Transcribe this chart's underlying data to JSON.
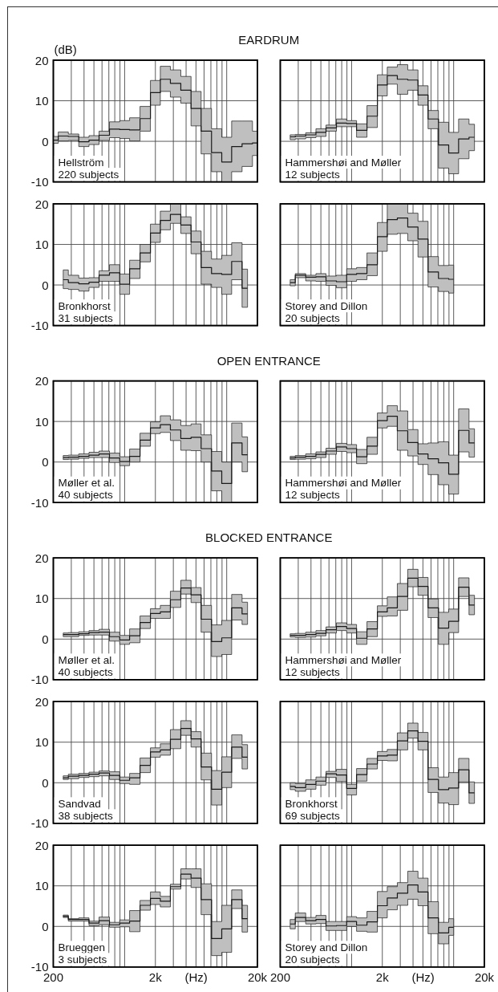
{
  "chart_data": [
    {
      "type": "step",
      "title": "EARDRUM",
      "ylabel": "(dB)",
      "annotations": [
        "Hellström",
        "220 subjects"
      ],
      "x": [
        200,
        250,
        315,
        400,
        500,
        630,
        800,
        1000,
        1250,
        1600,
        2000,
        2500,
        3150,
        4000,
        5000,
        6300,
        8000,
        10000,
        12500,
        16000,
        20000
      ],
      "series": [
        {
          "color": "#1a1a1a",
          "values": [
            0.3,
            1.3,
            1.2,
            -0.1,
            0.3,
            1.5,
            3.0,
            2.9,
            2.8,
            5.6,
            12.0,
            15.3,
            14.3,
            12.6,
            8.1,
            2.5,
            -2.8,
            -5.1,
            -1.3,
            -0.6,
            -0.4
          ],
          "upper": [
            1.2,
            2.3,
            1.8,
            1.0,
            1.4,
            2.5,
            4.8,
            5.1,
            5.8,
            8.6,
            15.0,
            18.5,
            17.6,
            16.0,
            12.3,
            8.1,
            3.1,
            1.0,
            5.0,
            5.0,
            2.5
          ],
          "lower": [
            -0.5,
            0.1,
            0.2,
            -1.3,
            -0.8,
            0.2,
            0.9,
            0.7,
            0.1,
            2.5,
            8.9,
            12.3,
            10.9,
            9.4,
            3.8,
            -3.1,
            -7.5,
            -10,
            -7.5,
            -6.2,
            -3.5
          ]
        }
      ],
      "xlim": [
        200,
        20000
      ],
      "ylim": [
        -10,
        20
      ],
      "log": "x",
      "grid": true,
      "tick_labels": "y",
      "xticks": [
        {
          "value": 200,
          "label": null
        },
        {
          "value": 300,
          "label": null
        },
        {
          "value": 400,
          "label": null
        },
        {
          "value": 500,
          "label": null
        },
        {
          "value": 600,
          "label": null
        },
        {
          "value": 700,
          "label": null
        },
        {
          "value": 800,
          "label": null
        },
        {
          "value": 900,
          "label": null
        },
        {
          "value": 1000,
          "label": null
        },
        {
          "value": 2000,
          "label": null
        },
        {
          "value": 3000,
          "label": null
        },
        {
          "value": 4000,
          "label": null
        },
        {
          "value": 5000,
          "label": null
        },
        {
          "value": 6000,
          "label": null
        },
        {
          "value": 7000,
          "label": null
        },
        {
          "value": 8000,
          "label": null
        },
        {
          "value": 9000,
          "label": null
        },
        {
          "value": 10000,
          "label": null
        },
        {
          "value": 20000,
          "label": null
        }
      ],
      "yticks": [
        -10,
        0,
        10,
        20
      ]
    },
    {
      "type": "step",
      "annotations": [
        "Hammershøi and Møller",
        "12 subjects"
      ],
      "x": [
        250,
        315,
        400,
        500,
        630,
        800,
        1000,
        1250,
        1600,
        2000,
        2500,
        3150,
        4000,
        5000,
        6300,
        8000,
        10000,
        12500,
        16000
      ],
      "series": [
        {
          "color": "#1a1a1a",
          "values": [
            1.1,
            1.3,
            1.6,
            2.2,
            3.3,
            4.5,
            4.4,
            2.7,
            6.2,
            13.9,
            16.2,
            15.3,
            15.1,
            11.4,
            5.5,
            -0.9,
            -2.9,
            0.6,
            1.0
          ],
          "upper": [
            1.6,
            1.7,
            2.1,
            3.1,
            4.0,
            5.5,
            5.1,
            4.3,
            8.8,
            16.4,
            18.3,
            18.9,
            17.6,
            13.7,
            7.6,
            4.7,
            2.2,
            5.5,
            4.2
          ],
          "lower": [
            0.4,
            0.6,
            0.9,
            1.2,
            2.5,
            3.6,
            3.6,
            1.0,
            3.4,
            11.2,
            14.1,
            11.6,
            12.6,
            8.9,
            3.1,
            -6.6,
            -8.0,
            -4.3,
            -2.3
          ]
        }
      ],
      "xlim": [
        200,
        20000
      ],
      "ylim": [
        -10,
        20
      ],
      "log": "x",
      "grid": true,
      "tick_labels": false,
      "xticks": [
        {
          "value": 200,
          "label": null
        },
        {
          "value": 300,
          "label": null
        },
        {
          "value": 400,
          "label": null
        },
        {
          "value": 500,
          "label": null
        },
        {
          "value": 600,
          "label": null
        },
        {
          "value": 700,
          "label": null
        },
        {
          "value": 800,
          "label": null
        },
        {
          "value": 900,
          "label": null
        },
        {
          "value": 1000,
          "label": null
        },
        {
          "value": 2000,
          "label": null
        },
        {
          "value": 3000,
          "label": null
        },
        {
          "value": 4000,
          "label": null
        },
        {
          "value": 5000,
          "label": null
        },
        {
          "value": 6000,
          "label": null
        },
        {
          "value": 7000,
          "label": null
        },
        {
          "value": 8000,
          "label": null
        },
        {
          "value": 9000,
          "label": null
        },
        {
          "value": 10000,
          "label": null
        },
        {
          "value": 20000,
          "label": null
        }
      ],
      "yticks": [
        -10,
        0,
        10,
        20
      ]
    },
    {
      "type": "step",
      "annotations": [
        "Bronkhorst",
        "31 subjects"
      ],
      "x": [
        250,
        315,
        400,
        500,
        630,
        800,
        1000,
        1250,
        1600,
        2000,
        2500,
        3150,
        4000,
        5000,
        6300,
        8000,
        10000,
        12500,
        16000
      ],
      "series": [
        {
          "color": "#1a1a1a",
          "values": [
            1.3,
            0.6,
            0.3,
            0.7,
            2.4,
            3.0,
            0.2,
            4.0,
            7.9,
            12.8,
            15.9,
            17.4,
            14.8,
            10.6,
            4.3,
            2.8,
            2.6,
            5.8,
            -0.8
          ],
          "upper": [
            3.7,
            2.4,
            1.7,
            1.8,
            3.5,
            5.0,
            2.7,
            6.1,
            10.0,
            15.0,
            18.2,
            20,
            16.8,
            13.3,
            8.3,
            6.4,
            7.3,
            10.4,
            3.9
          ],
          "lower": [
            -0.9,
            -1.1,
            -1.5,
            -0.6,
            0.9,
            0.9,
            -2.3,
            1.6,
            5.7,
            10.5,
            13.6,
            15.2,
            12.7,
            7.7,
            0.2,
            -0.6,
            -2.3,
            1.3,
            -5.5
          ]
        }
      ],
      "xlim": [
        200,
        20000
      ],
      "ylim": [
        -10,
        20
      ],
      "log": "x",
      "grid": true,
      "tick_labels": "y",
      "xticks": [
        {
          "value": 200,
          "label": null
        },
        {
          "value": 300,
          "label": null
        },
        {
          "value": 400,
          "label": null
        },
        {
          "value": 500,
          "label": null
        },
        {
          "value": 600,
          "label": null
        },
        {
          "value": 700,
          "label": null
        },
        {
          "value": 800,
          "label": null
        },
        {
          "value": 900,
          "label": null
        },
        {
          "value": 1000,
          "label": null
        },
        {
          "value": 2000,
          "label": null
        },
        {
          "value": 3000,
          "label": null
        },
        {
          "value": 4000,
          "label": null
        },
        {
          "value": 5000,
          "label": null
        },
        {
          "value": 6000,
          "label": null
        },
        {
          "value": 7000,
          "label": null
        },
        {
          "value": 8000,
          "label": null
        },
        {
          "value": 9000,
          "label": null
        },
        {
          "value": 10000,
          "label": null
        },
        {
          "value": 20000,
          "label": null
        }
      ],
      "yticks": [
        -10,
        0,
        10,
        20
      ]
    },
    {
      "type": "step",
      "annotations": [
        "Storey and Dillon",
        "20 subjects"
      ],
      "x": [
        250,
        315,
        400,
        500,
        630,
        800,
        1000,
        1250,
        1600,
        2000,
        2500,
        3150,
        4000,
        5000,
        6300,
        8000,
        10000
      ],
      "series": [
        {
          "color": "#1a1a1a",
          "values": [
            0.6,
            2.4,
            1.9,
            2.0,
            1.0,
            0.8,
            2.6,
            2.8,
            5.0,
            11.9,
            16.1,
            16.5,
            14.3,
            11.3,
            3.2,
            1.6,
            1.4
          ],
          "upper": [
            1.3,
            2.8,
            2.4,
            2.8,
            2.2,
            2.4,
            4.0,
            4.3,
            7.9,
            15.4,
            20,
            20,
            17.7,
            15.7,
            7.0,
            4.8,
            4.9
          ],
          "lower": [
            -0.2,
            1.8,
            1.0,
            0.9,
            -0.1,
            -0.7,
            0.9,
            1.3,
            2.3,
            8.3,
            12.5,
            12.7,
            10.9,
            6.9,
            -0.5,
            -1.6,
            -2.0
          ]
        }
      ],
      "xlim": [
        200,
        20000
      ],
      "ylim": [
        -10,
        20
      ],
      "log": "x",
      "grid": true,
      "tick_labels": false,
      "xticks": [
        {
          "value": 200,
          "label": null
        },
        {
          "value": 300,
          "label": null
        },
        {
          "value": 400,
          "label": null
        },
        {
          "value": 500,
          "label": null
        },
        {
          "value": 600,
          "label": null
        },
        {
          "value": 700,
          "label": null
        },
        {
          "value": 800,
          "label": null
        },
        {
          "value": 900,
          "label": null
        },
        {
          "value": 1000,
          "label": null
        },
        {
          "value": 2000,
          "label": null
        },
        {
          "value": 3000,
          "label": null
        },
        {
          "value": 4000,
          "label": null
        },
        {
          "value": 5000,
          "label": null
        },
        {
          "value": 6000,
          "label": null
        },
        {
          "value": 7000,
          "label": null
        },
        {
          "value": 8000,
          "label": null
        },
        {
          "value": 9000,
          "label": null
        },
        {
          "value": 10000,
          "label": null
        },
        {
          "value": 20000,
          "label": null
        }
      ],
      "yticks": [
        -10,
        0,
        10,
        20
      ]
    },
    {
      "type": "step",
      "title": "OPEN ENTRANCE",
      "annotations": [
        "Møller et al.",
        "40 subjects"
      ],
      "x": [
        250,
        315,
        400,
        500,
        630,
        800,
        1000,
        1250,
        1600,
        2000,
        2500,
        3150,
        4000,
        5000,
        6300,
        8000,
        10000,
        12500,
        16000
      ],
      "series": [
        {
          "color": "#1a1a1a",
          "values": [
            1.1,
            1.2,
            1.4,
            1.7,
            2.0,
            1.0,
            0.1,
            1.4,
            5.4,
            8.4,
            9.2,
            7.9,
            5.8,
            6.1,
            3.3,
            -2.2,
            -5.3,
            4.7,
            1.8
          ],
          "upper": [
            1.6,
            1.7,
            2.0,
            2.4,
            2.7,
            2.2,
            1.3,
            3.2,
            7.1,
            9.9,
            11.4,
            10.4,
            9.0,
            9.4,
            6.7,
            2.6,
            0.0,
            9.6,
            6.2
          ],
          "lower": [
            0.6,
            0.7,
            0.9,
            1.1,
            1.1,
            -0.1,
            -0.9,
            0.0,
            3.9,
            7.0,
            7.3,
            5.3,
            2.9,
            2.8,
            0.0,
            -7.1,
            -10,
            0.0,
            -2.4
          ]
        }
      ],
      "xlim": [
        200,
        20000
      ],
      "ylim": [
        -10,
        20
      ],
      "log": "x",
      "grid": true,
      "tick_labels": "y",
      "xticks": [
        {
          "value": 200,
          "label": null
        },
        {
          "value": 300,
          "label": null
        },
        {
          "value": 400,
          "label": null
        },
        {
          "value": 500,
          "label": null
        },
        {
          "value": 600,
          "label": null
        },
        {
          "value": 700,
          "label": null
        },
        {
          "value": 800,
          "label": null
        },
        {
          "value": 900,
          "label": null
        },
        {
          "value": 1000,
          "label": null
        },
        {
          "value": 2000,
          "label": null
        },
        {
          "value": 3000,
          "label": null
        },
        {
          "value": 4000,
          "label": null
        },
        {
          "value": 5000,
          "label": null
        },
        {
          "value": 6000,
          "label": null
        },
        {
          "value": 7000,
          "label": null
        },
        {
          "value": 8000,
          "label": null
        },
        {
          "value": 9000,
          "label": null
        },
        {
          "value": 10000,
          "label": null
        },
        {
          "value": 20000,
          "label": null
        }
      ],
      "yticks": [
        -10,
        0,
        10,
        20
      ]
    },
    {
      "type": "step",
      "annotations": [
        "Hammershøi and Møller",
        "12 subjects"
      ],
      "x": [
        250,
        315,
        400,
        500,
        630,
        800,
        1000,
        1250,
        1600,
        2000,
        2500,
        3150,
        4000,
        5000,
        6300,
        8000,
        10000,
        12500,
        16000
      ],
      "series": [
        {
          "color": "#1a1a1a",
          "values": [
            1.0,
            1.2,
            1.4,
            1.9,
            2.7,
            3.7,
            3.3,
            1.3,
            3.9,
            10.2,
            11.3,
            7.7,
            4.8,
            2.0,
            0.8,
            -0.2,
            -3.0,
            7.8,
            4.7
          ],
          "upper": [
            1.4,
            1.6,
            2.0,
            2.5,
            3.4,
            4.6,
            4.3,
            3.1,
            6.1,
            12.1,
            13.9,
            12.6,
            8.0,
            4.5,
            4.7,
            5.0,
            1.7,
            13.1,
            8.2
          ],
          "lower": [
            0.6,
            0.7,
            0.8,
            1.1,
            1.9,
            2.6,
            2.3,
            -0.4,
            1.9,
            8.4,
            8.8,
            2.9,
            1.5,
            -0.6,
            -3.1,
            -5.6,
            -7.9,
            2.5,
            1.2
          ]
        }
      ],
      "xlim": [
        200,
        20000
      ],
      "ylim": [
        -10,
        20
      ],
      "log": "x",
      "grid": true,
      "tick_labels": false,
      "xticks": [
        {
          "value": 200,
          "label": null
        },
        {
          "value": 300,
          "label": null
        },
        {
          "value": 400,
          "label": null
        },
        {
          "value": 500,
          "label": null
        },
        {
          "value": 600,
          "label": null
        },
        {
          "value": 700,
          "label": null
        },
        {
          "value": 800,
          "label": null
        },
        {
          "value": 900,
          "label": null
        },
        {
          "value": 1000,
          "label": null
        },
        {
          "value": 2000,
          "label": null
        },
        {
          "value": 3000,
          "label": null
        },
        {
          "value": 4000,
          "label": null
        },
        {
          "value": 5000,
          "label": null
        },
        {
          "value": 6000,
          "label": null
        },
        {
          "value": 7000,
          "label": null
        },
        {
          "value": 8000,
          "label": null
        },
        {
          "value": 9000,
          "label": null
        },
        {
          "value": 10000,
          "label": null
        },
        {
          "value": 20000,
          "label": null
        }
      ],
      "yticks": [
        -10,
        0,
        10,
        20
      ]
    },
    {
      "type": "step",
      "title": "BLOCKED ENTRANCE",
      "annotations": [
        "Møller et al.",
        "40 subjects"
      ],
      "x": [
        250,
        315,
        400,
        500,
        630,
        800,
        1000,
        1250,
        1600,
        2000,
        2500,
        3150,
        4000,
        5000,
        6300,
        8000,
        10000,
        12500,
        16000
      ],
      "series": [
        {
          "color": "#1a1a1a",
          "values": [
            1.1,
            1.1,
            1.3,
            1.6,
            1.7,
            0.6,
            -0.2,
            0.8,
            4.1,
            6.3,
            6.7,
            9.7,
            12.6,
            10.9,
            4.9,
            -0.6,
            0.3,
            7.7,
            6.2
          ],
          "upper": [
            1.5,
            1.6,
            1.8,
            2.1,
            2.4,
            1.7,
            0.9,
            2.5,
            5.7,
            7.5,
            8.3,
            11.8,
            14.5,
            12.7,
            8.3,
            3.5,
            4.6,
            11.0,
            9.1
          ],
          "lower": [
            0.6,
            0.6,
            0.9,
            1.0,
            1.0,
            -0.5,
            -1.3,
            -0.9,
            2.6,
            5.1,
            5.1,
            7.8,
            11.1,
            9.0,
            1.7,
            -4.3,
            -3.8,
            4.7,
            3.6
          ]
        }
      ],
      "xlim": [
        200,
        20000
      ],
      "ylim": [
        -10,
        20
      ],
      "log": "x",
      "grid": true,
      "tick_labels": "y",
      "xticks": [
        {
          "value": 200,
          "label": null
        },
        {
          "value": 300,
          "label": null
        },
        {
          "value": 400,
          "label": null
        },
        {
          "value": 500,
          "label": null
        },
        {
          "value": 600,
          "label": null
        },
        {
          "value": 700,
          "label": null
        },
        {
          "value": 800,
          "label": null
        },
        {
          "value": 900,
          "label": null
        },
        {
          "value": 1000,
          "label": null
        },
        {
          "value": 2000,
          "label": null
        },
        {
          "value": 3000,
          "label": null
        },
        {
          "value": 4000,
          "label": null
        },
        {
          "value": 5000,
          "label": null
        },
        {
          "value": 6000,
          "label": null
        },
        {
          "value": 7000,
          "label": null
        },
        {
          "value": 8000,
          "label": null
        },
        {
          "value": 9000,
          "label": null
        },
        {
          "value": 10000,
          "label": null
        },
        {
          "value": 20000,
          "label": null
        }
      ],
      "yticks": [
        -10,
        0,
        10,
        20
      ]
    },
    {
      "type": "step",
      "annotations": [
        "Hammershøi and Møller",
        "12 subjects"
      ],
      "x": [
        250,
        315,
        400,
        500,
        630,
        800,
        1000,
        1250,
        1600,
        2000,
        2500,
        3150,
        4000,
        5000,
        6300,
        8000,
        10000,
        12500,
        16000
      ],
      "series": [
        {
          "color": "#1a1a1a",
          "values": [
            0.9,
            0.9,
            1.1,
            1.4,
            2.3,
            3.1,
            2.6,
            0.2,
            2.5,
            6.7,
            7.7,
            10.5,
            15.0,
            13.0,
            7.7,
            2.7,
            4.4,
            12.8,
            8.4
          ],
          "upper": [
            1.3,
            1.4,
            1.7,
            2.1,
            3.0,
            4.0,
            3.6,
            1.8,
            4.3,
            8.2,
            10.4,
            13.7,
            17.2,
            15.2,
            9.9,
            6.6,
            7.4,
            15.1,
            10.8
          ],
          "lower": [
            0.5,
            0.4,
            0.5,
            0.8,
            1.5,
            2.1,
            1.5,
            -1.3,
            0.6,
            5.6,
            5.7,
            7.1,
            12.9,
            10.8,
            5.3,
            -1.3,
            1.6,
            10.5,
            6.0
          ]
        }
      ],
      "xlim": [
        200,
        20000
      ],
      "ylim": [
        -10,
        20
      ],
      "log": "x",
      "grid": true,
      "tick_labels": false,
      "xticks": [
        {
          "value": 200,
          "label": null
        },
        {
          "value": 300,
          "label": null
        },
        {
          "value": 400,
          "label": null
        },
        {
          "value": 500,
          "label": null
        },
        {
          "value": 600,
          "label": null
        },
        {
          "value": 700,
          "label": null
        },
        {
          "value": 800,
          "label": null
        },
        {
          "value": 900,
          "label": null
        },
        {
          "value": 1000,
          "label": null
        },
        {
          "value": 2000,
          "label": null
        },
        {
          "value": 3000,
          "label": null
        },
        {
          "value": 4000,
          "label": null
        },
        {
          "value": 5000,
          "label": null
        },
        {
          "value": 6000,
          "label": null
        },
        {
          "value": 7000,
          "label": null
        },
        {
          "value": 8000,
          "label": null
        },
        {
          "value": 9000,
          "label": null
        },
        {
          "value": 10000,
          "label": null
        },
        {
          "value": 20000,
          "label": null
        }
      ],
      "yticks": [
        -10,
        0,
        10,
        20
      ]
    },
    {
      "type": "step",
      "annotations": [
        "Sandvad",
        "38 subjects"
      ],
      "x": [
        250,
        315,
        400,
        500,
        630,
        800,
        1000,
        1250,
        1600,
        2000,
        2500,
        3150,
        4000,
        5000,
        6300,
        8000,
        10000,
        12500,
        16000
      ],
      "series": [
        {
          "color": "#1a1a1a",
          "values": [
            1.2,
            1.6,
            1.8,
            2.1,
            2.4,
            1.8,
            0.6,
            1.2,
            4.3,
            7.6,
            8.1,
            10.7,
            13.4,
            10.8,
            3.9,
            -1.6,
            2.6,
            8.8,
            6.3
          ],
          "upper": [
            1.7,
            2.1,
            2.3,
            2.6,
            2.9,
            2.7,
            1.4,
            2.3,
            6.1,
            8.6,
            9.6,
            13.1,
            15.3,
            12.6,
            7.3,
            3.0,
            6.4,
            11.8,
            9.4
          ],
          "lower": [
            0.8,
            1.0,
            1.3,
            1.5,
            1.7,
            0.8,
            -0.2,
            -0.4,
            2.5,
            6.3,
            6.8,
            8.4,
            11.7,
            8.8,
            0.7,
            -5.5,
            -1.2,
            6.0,
            3.4
          ]
        }
      ],
      "xlim": [
        200,
        20000
      ],
      "ylim": [
        -10,
        20
      ],
      "log": "x",
      "grid": true,
      "tick_labels": "y",
      "xticks": [
        {
          "value": 200,
          "label": null
        },
        {
          "value": 300,
          "label": null
        },
        {
          "value": 400,
          "label": null
        },
        {
          "value": 500,
          "label": null
        },
        {
          "value": 600,
          "label": null
        },
        {
          "value": 700,
          "label": null
        },
        {
          "value": 800,
          "label": null
        },
        {
          "value": 900,
          "label": null
        },
        {
          "value": 1000,
          "label": null
        },
        {
          "value": 2000,
          "label": null
        },
        {
          "value": 3000,
          "label": null
        },
        {
          "value": 4000,
          "label": null
        },
        {
          "value": 5000,
          "label": null
        },
        {
          "value": 6000,
          "label": null
        },
        {
          "value": 7000,
          "label": null
        },
        {
          "value": 8000,
          "label": null
        },
        {
          "value": 9000,
          "label": null
        },
        {
          "value": 10000,
          "label": null
        },
        {
          "value": 20000,
          "label": null
        }
      ],
      "yticks": [
        -10,
        0,
        10,
        20
      ]
    },
    {
      "type": "step",
      "annotations": [
        "Bronkhorst",
        "69 subjects"
      ],
      "x": [
        250,
        315,
        400,
        500,
        630,
        800,
        1000,
        1250,
        1600,
        2000,
        2500,
        3150,
        4000,
        5000,
        6300,
        8000,
        10000,
        12500,
        16000
      ],
      "series": [
        {
          "color": "#1a1a1a",
          "values": [
            -0.9,
            -1.2,
            -0.4,
            0.4,
            2.2,
            1.9,
            -1.4,
            2.0,
            4.6,
            6.6,
            6.8,
            10.3,
            12.8,
            10.2,
            0.8,
            -1.7,
            -1.3,
            3.2,
            -2.5
          ],
          "upper": [
            0.0,
            -0.2,
            0.7,
            1.4,
            2.8,
            3.3,
            -0.4,
            3.5,
            6.0,
            7.7,
            8.2,
            12.3,
            14.7,
            12.4,
            3.7,
            1.4,
            2.5,
            6.0,
            0.2
          ],
          "lower": [
            -1.7,
            -2.1,
            -1.6,
            -0.6,
            1.3,
            0.3,
            -3.0,
            0.4,
            3.4,
            5.5,
            5.4,
            8.1,
            11.0,
            8.1,
            -2.4,
            -5.0,
            -5.4,
            0.2,
            -5.1
          ]
        }
      ],
      "xlim": [
        200,
        20000
      ],
      "ylim": [
        -10,
        20
      ],
      "log": "x",
      "grid": true,
      "tick_labels": false,
      "xticks": [
        {
          "value": 200,
          "label": null
        },
        {
          "value": 300,
          "label": null
        },
        {
          "value": 400,
          "label": null
        },
        {
          "value": 500,
          "label": null
        },
        {
          "value": 600,
          "label": null
        },
        {
          "value": 700,
          "label": null
        },
        {
          "value": 800,
          "label": null
        },
        {
          "value": 900,
          "label": null
        },
        {
          "value": 1000,
          "label": null
        },
        {
          "value": 2000,
          "label": null
        },
        {
          "value": 3000,
          "label": null
        },
        {
          "value": 4000,
          "label": null
        },
        {
          "value": 5000,
          "label": null
        },
        {
          "value": 6000,
          "label": null
        },
        {
          "value": 7000,
          "label": null
        },
        {
          "value": 8000,
          "label": null
        },
        {
          "value": 9000,
          "label": null
        },
        {
          "value": 10000,
          "label": null
        },
        {
          "value": 20000,
          "label": null
        }
      ],
      "yticks": [
        -10,
        0,
        10,
        20
      ]
    },
    {
      "type": "step",
      "xlabel": "(Hz)",
      "annotations": [
        "Brueggen",
        "3 subjects"
      ],
      "x": [
        250,
        315,
        400,
        500,
        630,
        800,
        1000,
        1250,
        1600,
        2000,
        2500,
        3150,
        4000,
        5000,
        6300,
        8000,
        10000,
        12500,
        16000
      ],
      "series": [
        {
          "color": "#1a1a1a",
          "values": [
            2.5,
            1.7,
            1.7,
            0.8,
            1.4,
            0.4,
            0.8,
            1.3,
            5.2,
            6.9,
            6.2,
            9.8,
            12.9,
            11.9,
            6.6,
            -3.0,
            -0.6,
            6.6,
            1.9
          ],
          "upper": [
            2.8,
            1.9,
            2.1,
            1.3,
            2.3,
            1.0,
            1.6,
            3.9,
            6.4,
            8.5,
            7.4,
            10.4,
            14.2,
            14.2,
            10.5,
            1.2,
            5.2,
            9.0,
            5.2
          ],
          "lower": [
            2.2,
            1.3,
            1.3,
            0.2,
            0.4,
            -0.2,
            -0.1,
            -1.3,
            4.0,
            5.4,
            4.8,
            9.2,
            11.7,
            9.6,
            2.9,
            -7.2,
            -6.4,
            4.4,
            -1.4
          ]
        }
      ],
      "xlim": [
        200,
        20000
      ],
      "ylim": [
        -10,
        20
      ],
      "log": "x",
      "grid": true,
      "xticks": [
        200,
        {
          "value": 300,
          "label": null
        },
        {
          "value": 400,
          "label": null
        },
        {
          "value": 500,
          "label": null
        },
        {
          "value": 600,
          "label": null
        },
        {
          "value": 700,
          "label": null
        },
        {
          "value": 800,
          "label": null
        },
        {
          "value": 900,
          "label": null
        },
        {
          "value": 1000,
          "label": null
        },
        {
          "value": 2000,
          "label": "2k"
        },
        {
          "value": 3000,
          "label": null
        },
        {
          "value": 4000,
          "label": null
        },
        {
          "value": 5000,
          "label": null
        },
        {
          "value": 6000,
          "label": null
        },
        {
          "value": 7000,
          "label": null
        },
        {
          "value": 8000,
          "label": null
        },
        {
          "value": 9000,
          "label": null
        },
        {
          "value": 10000,
          "label": null
        },
        {
          "value": 20000,
          "label": "20k"
        }
      ],
      "yticks": [
        -10,
        0,
        10,
        20
      ]
    },
    {
      "type": "step",
      "xlabel": "(Hz)",
      "annotations": [
        "Storey and Dillon",
        "20 subjects"
      ],
      "x": [
        250,
        315,
        400,
        500,
        630,
        800,
        1000,
        1250,
        1600,
        2000,
        2500,
        3150,
        4000,
        5000,
        6300,
        8000,
        10000
      ],
      "series": [
        {
          "color": "#1a1a1a",
          "values": [
            0.6,
            2.2,
            1.4,
            1.7,
            0.1,
            0.2,
            1.2,
            0.3,
            1.1,
            5.1,
            7.0,
            8.2,
            10.2,
            8.5,
            2.1,
            -1.6,
            -0.2
          ],
          "upper": [
            1.7,
            3.3,
            2.2,
            2.7,
            1.2,
            1.2,
            2.4,
            2.1,
            3.7,
            8.6,
            9.8,
            10.8,
            13.6,
            11.9,
            6.1,
            1.0,
            1.9
          ],
          "lower": [
            -0.6,
            1.2,
            0.6,
            0.7,
            -1.0,
            -1.0,
            0.0,
            -1.2,
            -1.4,
            2.1,
            4.1,
            5.2,
            6.7,
            5.1,
            -1.8,
            -4.3,
            -2.2
          ]
        }
      ],
      "xlim": [
        200,
        20000
      ],
      "ylim": [
        -10,
        20
      ],
      "log": "x",
      "grid": true,
      "tick_labels": "x",
      "xticks": [
        200,
        {
          "value": 300,
          "label": null
        },
        {
          "value": 400,
          "label": null
        },
        {
          "value": 500,
          "label": null
        },
        {
          "value": 600,
          "label": null
        },
        {
          "value": 700,
          "label": null
        },
        {
          "value": 800,
          "label": null
        },
        {
          "value": 900,
          "label": null
        },
        {
          "value": 1000,
          "label": null
        },
        {
          "value": 2000,
          "label": "2k"
        },
        {
          "value": 3000,
          "label": null
        },
        {
          "value": 4000,
          "label": null
        },
        {
          "value": 5000,
          "label": null
        },
        {
          "value": 6000,
          "label": null
        },
        {
          "value": 7000,
          "label": null
        },
        {
          "value": 8000,
          "label": null
        },
        {
          "value": 9000,
          "label": null
        },
        {
          "value": 10000,
          "label": null
        },
        {
          "value": 20000,
          "label": "20k"
        }
      ],
      "yticks": [
        -10,
        0,
        10,
        20
      ]
    }
  ]
}
